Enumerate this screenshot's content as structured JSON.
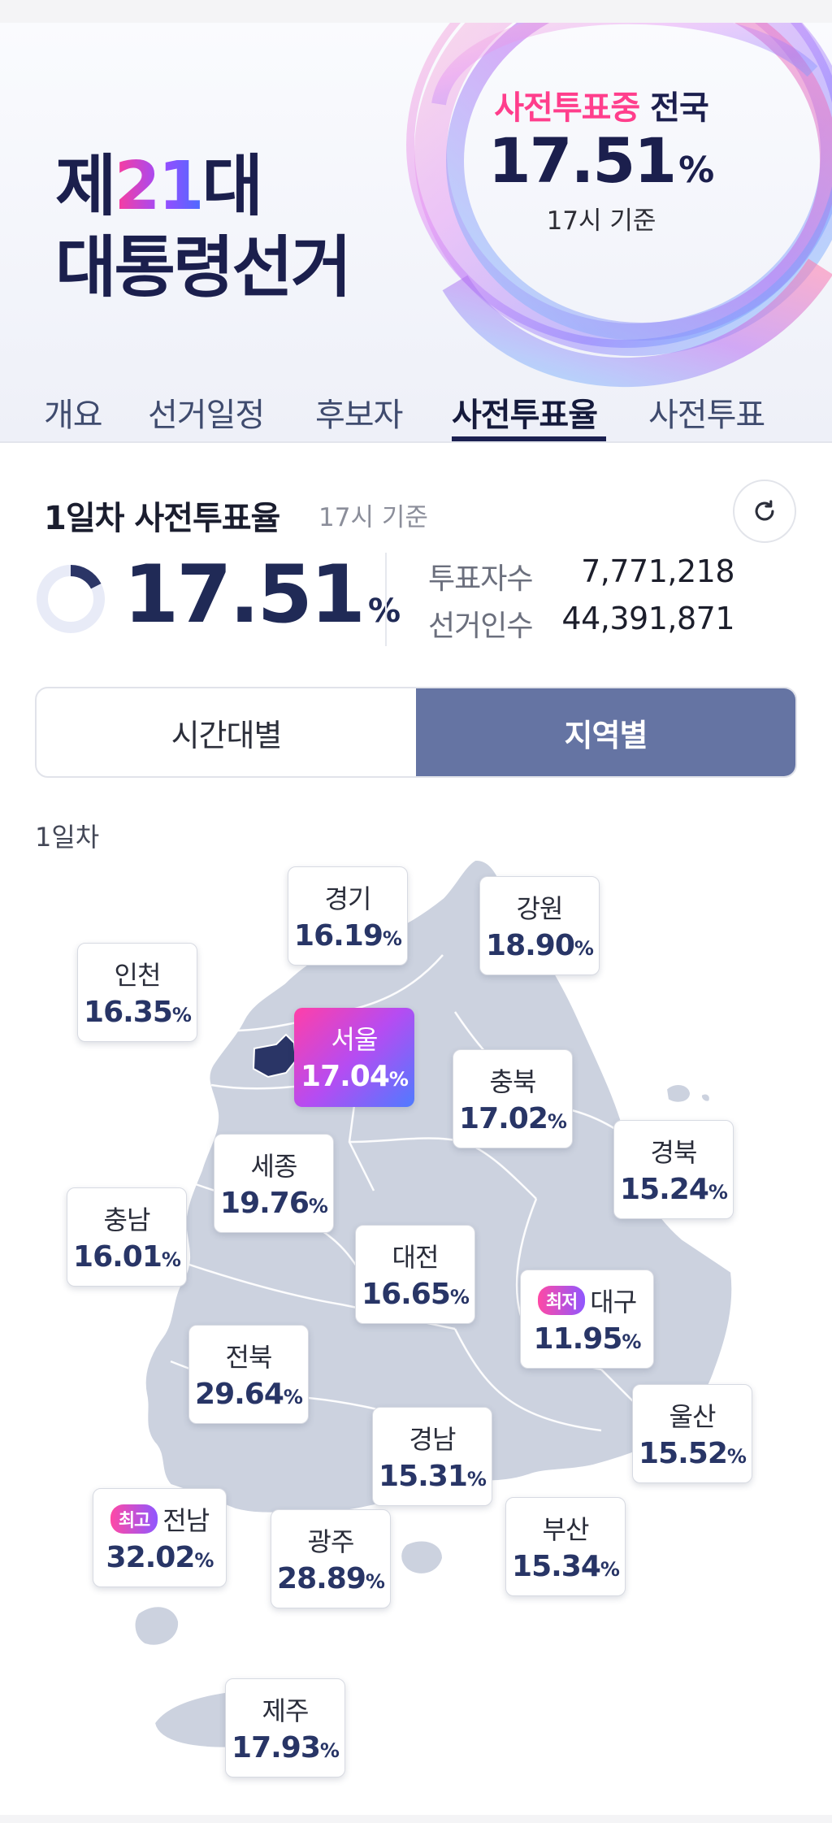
{
  "banner": {
    "title_prefix": "제",
    "title_number": "21",
    "title_suffix": "대",
    "title_line2": "대통령선거",
    "label_highlight": "사전투표중",
    "label_rest": " 전국",
    "rate": "17.51",
    "pct": "%",
    "time": "17시 기준"
  },
  "tabs": [
    {
      "label": "개요"
    },
    {
      "label": "선거일정"
    },
    {
      "label": "후보자"
    },
    {
      "label": "사전투표율",
      "active": true
    },
    {
      "label": "사전투표"
    }
  ],
  "summary": {
    "title": "1일차 사전투표율",
    "sub": "17시 기준",
    "rate": "17.51",
    "pct": "%",
    "rate_fraction": 0.1751,
    "voters_label": "투표자수",
    "voters_value": "7,771,218",
    "electorate_label": "선거인수",
    "electorate_value": "44,391,871",
    "refresh_icon": "refresh-icon"
  },
  "segment": {
    "by_time": "시간대별",
    "by_region": "지역별",
    "active": "by_region"
  },
  "day_label": "1일차",
  "regions": {
    "gyeonggi": {
      "name": "경기",
      "value": "16.19"
    },
    "gangwon": {
      "name": "강원",
      "value": "18.90"
    },
    "incheon": {
      "name": "인천",
      "value": "16.35"
    },
    "seoul": {
      "name": "서울",
      "value": "17.04"
    },
    "chungbuk": {
      "name": "충북",
      "value": "17.02"
    },
    "gyeongbuk": {
      "name": "경북",
      "value": "15.24"
    },
    "sejong": {
      "name": "세종",
      "value": "19.76"
    },
    "chungnam": {
      "name": "충남",
      "value": "16.01"
    },
    "daejeon": {
      "name": "대전",
      "value": "16.65"
    },
    "daegu": {
      "name": "대구",
      "value": "11.95",
      "badge": "최저"
    },
    "jeonbuk": {
      "name": "전북",
      "value": "29.64"
    },
    "ulsan": {
      "name": "울산",
      "value": "15.52"
    },
    "gyeongnam": {
      "name": "경남",
      "value": "15.31"
    },
    "jeonnam": {
      "name": "전남",
      "value": "32.02",
      "badge": "최고"
    },
    "gwangju": {
      "name": "광주",
      "value": "28.89"
    },
    "busan": {
      "name": "부산",
      "value": "15.34"
    },
    "jeju": {
      "name": "제주",
      "value": "17.93"
    }
  },
  "pct_unit": "%",
  "colors": {
    "navy": "#1b1f4d",
    "accent_pink": "#ff3e8c",
    "segment_active": "#6574a3",
    "map_fill": "#ccd2df",
    "map_highlight": "#2a3566"
  }
}
